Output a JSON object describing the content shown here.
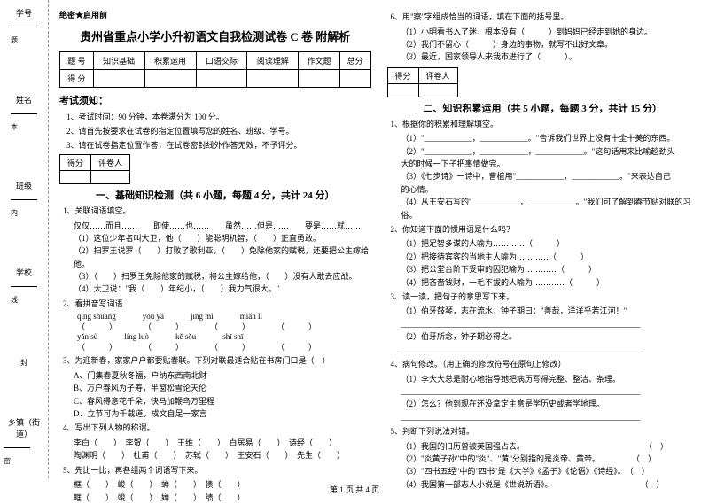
{
  "secret": "绝密★启用前",
  "title": "贵州省重点小学小升初语文自我检测试卷 C 卷 附解析",
  "scoreTable": {
    "headers": [
      "题 号",
      "知识基础",
      "积累运用",
      "口语交际",
      "阅读理解",
      "作文题",
      "总分"
    ],
    "row2": "得 分"
  },
  "sidebar": {
    "items": [
      "学号",
      "姓名",
      "班级",
      "学校",
      "乡镇（街道）"
    ],
    "marks": [
      "题",
      "本",
      "内",
      "线",
      "封",
      "密"
    ]
  },
  "noticeTitle": "考试须知：",
  "notices": [
    "1、考试时间：90 分钟，本卷满分为 100 分。",
    "2、请首先按要求在试卷的指定位置填写您的姓名、班级、学号。",
    "3、请在试卷指定位置作答，在试卷密封线外作答无效，不予评分。"
  ],
  "scorer": [
    "得分",
    "评卷人"
  ],
  "sec1": {
    "title": "一、基础知识检测（共 6 小题，每题 4 分，共计 24 分）",
    "q1": "1、关联词语填空。",
    "q1_sub": [
      "仅仅……而且……　　即使……也……　　虽然……但是……　　要是……就……",
      "（1）这位少年名叫大卫，他（　　）能聪明机智，（　　）正直勇敢。",
      "（2）扫罗王说罗（　　）打败了歌利亚，（　　）免除他家的赋税，还要把公主嫁给他。",
      "（3）（　　）扫罗王免除他家的赋税，将公主嫁给他，（　　）没有人敢去应战。",
      "（4）大卫说：\"我（　　）年纪小，（　　）我力气很大。\""
    ],
    "q2": "2、看拼音写词语",
    "q2_pinyin": [
      [
        "qīng shuāng",
        "yōu yǎ",
        "jīng mì",
        "miǎn lì"
      ],
      [
        "（　　　）",
        "（　　　）",
        "（　　　）",
        "（　　　）"
      ],
      [
        "yǎn sù",
        "líng luò",
        "kě sǒu",
        "shī shī"
      ],
      [
        "（　　　）",
        "（　　　）",
        "（　　　）",
        "（　　　）"
      ]
    ],
    "q3": "3、为迎新春，家家户户都要贴春联。下列对联最适合贴在书房门口是（　）",
    "q3_opts": [
      "A、门集春夏秋冬福，户纳东西南北财",
      "B、万户春风为子寿，半窗松雪论天伦",
      "C、春风得意花千朵，快马加鞭鸟万里程",
      "D、立节可为千载道，成文自足一家言"
    ],
    "q4": "4、写出下列人物的称谓。",
    "q4_sub": [
      "李白（　　）　李贺（　　）　王维（　　）　白居易（　　）　诗经（　　）",
      "陶渊明（　　）　杜甫（　　）　苏轼（　　）　王安石（　　）　先生（　　）"
    ],
    "q5": "5、先比一比，再各组两个词语写下来。",
    "q5_sub": [
      "框（　　）　峻（　　）　蝉（　　）　债（　　）",
      "眶（　　）　竣（　　）　婵（　　）　绩（　　）"
    ]
  },
  "col2": {
    "q6": "6、用\"察\"字组成恰当的词语，填在下面的括号里。",
    "q6_sub": [
      "（1）小明看书入了迷，根本没有（　　　）到妈妈已经走到她的身边。",
      "（2）我们不留心（　　　）身边的事物，就写不出好文章。",
      "（3）最近，国家领导人来我市进行了（　　　）。"
    ],
    "sec2": "二、知识积累运用（共 5 小题，每题 3 分，共计 15 分）",
    "q2_1": "1、根据你的积累和理解填空。",
    "q2_1_sub": [
      "（1）\"____________，____________。\"告诉我们世界上没有十全十美的东西。",
      "（2）\"____________，____________，____________。\"这句话用来比喻趁劲头",
      "大的时候一下子把事情做完。",
      "（3）《七步诗》一诗中，曹植用\"____________，____________。\"来表达自己",
      "的心情。",
      "（4）从王安石写的\"____________，____________。\"我们可了解到春节贴对联的习俗。"
    ],
    "q2_2": "2、你知道下面的惯用语是什么吗？",
    "q2_2_sub": [
      "（1）把足智多谋的人喻为…………（　　　）",
      "（2）把接待宾客的当地主人喻为…………（　　　）",
      "（3）把公堂台阶下受审的因犯喻为…………（　　　）",
      "（4）把吝啬钱财，一毛不拔的人喻为…………（　　　）"
    ],
    "q2_3": "3、读一读，把句子的意思写下来。",
    "q2_3_sub": [
      "（1）伯牙鼓琴，志在流水，钟子期曰：\"善哉，洋洋乎若江河！\"",
      "____________________________________________________________",
      "（2）伯牙所念，钟子期必得之。",
      "____________________________________________________________"
    ],
    "q2_4": "4、病句修改。（用正确的修改符号在原句上修改）",
    "q2_4_sub": [
      "（1）李大大总是耐心地指导她把病历写得完整、整洁、条理。",
      "____________________________________________________________",
      "（2）怎么？他到现在还没拿定主意是学历史或者学地理。",
      "____________________________________________________________"
    ],
    "q2_5": "5、判断下列说法对错。",
    "q2_5_sub": [
      "（1）我国的旧历曾被英国强占去。　　　　　　　　　　　　　　　　（　）",
      "（2）\"炎黄子孙\"中的\"炎\"、\"黄\"分别指的是炎帝、黄帝。　　　　　（　）",
      "（3）\"四书五经\"中的\"四书\"是《大学》《孟子》《论语》《诗经》。　（　）",
      "（4）我国第一部志人小说是《世说新语》。　　　　　　　　　　　　（　）"
    ]
  },
  "footer": "第 1 页 共 4 页"
}
